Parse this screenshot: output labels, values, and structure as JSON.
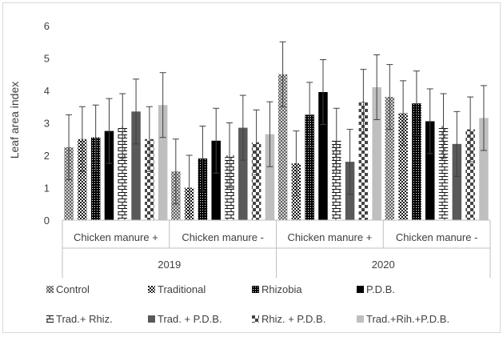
{
  "chart_data": {
    "type": "bar",
    "ylabel": "Leaf area index",
    "xlabel": "",
    "ylim": [
      0,
      6
    ],
    "yticks": [
      0,
      1,
      2,
      3,
      4,
      5,
      6
    ],
    "grid": false,
    "error_bars": true,
    "legend_position": "bottom",
    "groups": [
      {
        "label": "2019",
        "categories": [
          "Chicken manure +",
          "Chicken manure -"
        ]
      },
      {
        "label": "2020",
        "categories": [
          "Chicken manure +",
          "Chicken manure -"
        ]
      }
    ],
    "series": [
      {
        "name": "Control",
        "pattern": "crosshatch-dots",
        "values": [
          2.25,
          1.5,
          4.5,
          3.8
        ],
        "errors": [
          1.0,
          1.0,
          1.0,
          1.0
        ]
      },
      {
        "name": "Traditional",
        "pattern": "checker",
        "values": [
          2.5,
          1.0,
          1.75,
          3.3
        ],
        "errors": [
          1.0,
          1.0,
          1.0,
          1.0
        ]
      },
      {
        "name": "Rhizobia",
        "pattern": "dense-dark",
        "values": [
          2.55,
          1.9,
          3.25,
          3.6
        ],
        "errors": [
          1.0,
          1.0,
          1.0,
          1.0
        ]
      },
      {
        "name": "P.D.B.",
        "pattern": "solid-black",
        "values": [
          2.75,
          2.45,
          3.95,
          3.05
        ],
        "errors": [
          1.0,
          1.0,
          1.0,
          1.0
        ]
      },
      {
        "name": "Trad.+ Rhiz.",
        "pattern": "brick",
        "values": [
          2.9,
          2.0,
          2.45,
          2.9
        ],
        "errors": [
          1.0,
          1.0,
          1.0,
          1.0
        ]
      },
      {
        "name": "Trad. + P.D.B.",
        "pattern": "solid-gray",
        "values": [
          3.35,
          2.85,
          1.8,
          2.35
        ],
        "errors": [
          1.0,
          1.0,
          1.0,
          1.0
        ]
      },
      {
        "name": "Rhiz. + P.D.B.",
        "pattern": "checker-large",
        "values": [
          2.5,
          2.4,
          3.65,
          2.8
        ],
        "errors": [
          1.0,
          1.0,
          1.0,
          1.0
        ]
      },
      {
        "name": "Trad.+Rih.+P.D.B.",
        "pattern": "solid-light",
        "values": [
          3.55,
          2.65,
          4.1,
          3.15
        ],
        "errors": [
          1.0,
          1.0,
          1.0,
          1.0
        ]
      }
    ]
  }
}
